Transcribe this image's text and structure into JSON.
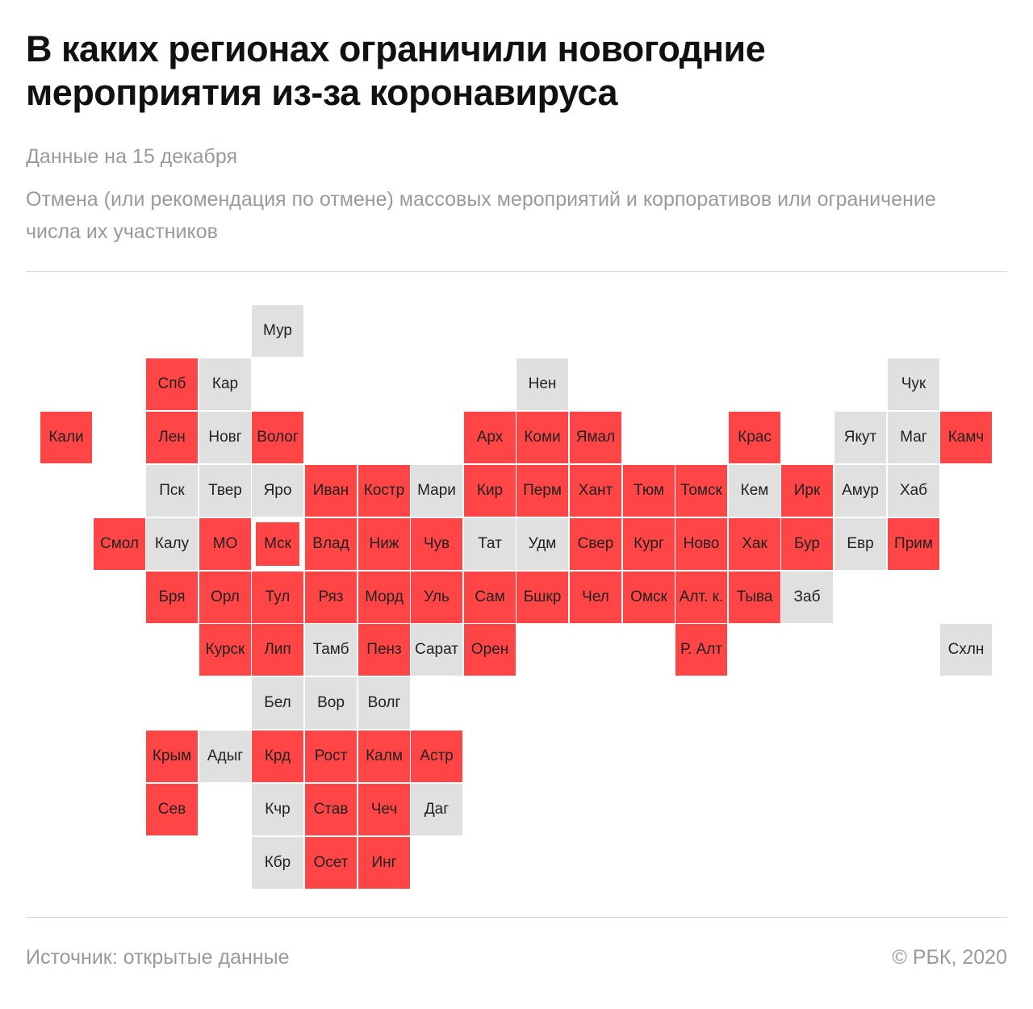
{
  "header": {
    "title": "В каких регионах ограничили новогодние мероприятия из-за коронавируса",
    "date": "Данные на 15 декабря",
    "subtitle": "Отмена (или рекомендация по отмене) массовых мероприятий и корпоративов или ограничение числа их участников"
  },
  "footer": {
    "source": "Источник:  открытые данные",
    "copyright": "© РБК, 2020"
  },
  "colors": {
    "restricted": "#ff4545",
    "none": "#e0e0e0"
  },
  "regions": [
    {
      "label": "Мур",
      "row": 0,
      "col": 4,
      "status": "none"
    },
    {
      "label": "Спб",
      "row": 1,
      "col": 2,
      "status": "restricted"
    },
    {
      "label": "Кар",
      "row": 1,
      "col": 3,
      "status": "none"
    },
    {
      "label": "Нен",
      "row": 1,
      "col": 9,
      "status": "none"
    },
    {
      "label": "Чук",
      "row": 1,
      "col": 16,
      "status": "none"
    },
    {
      "label": "Кали",
      "row": 2,
      "col": 0,
      "status": "restricted"
    },
    {
      "label": "Лен",
      "row": 2,
      "col": 2,
      "status": "restricted"
    },
    {
      "label": "Новг",
      "row": 2,
      "col": 3,
      "status": "none"
    },
    {
      "label": "Волог",
      "row": 2,
      "col": 4,
      "status": "restricted"
    },
    {
      "label": "Арх",
      "row": 2,
      "col": 8,
      "status": "restricted"
    },
    {
      "label": "Коми",
      "row": 2,
      "col": 9,
      "status": "restricted"
    },
    {
      "label": "Ямал",
      "row": 2,
      "col": 10,
      "status": "restricted"
    },
    {
      "label": "Крас",
      "row": 2,
      "col": 13,
      "status": "restricted"
    },
    {
      "label": "Якут",
      "row": 2,
      "col": 15,
      "status": "none"
    },
    {
      "label": "Маг",
      "row": 2,
      "col": 16,
      "status": "none"
    },
    {
      "label": "Камч",
      "row": 2,
      "col": 17,
      "status": "restricted"
    },
    {
      "label": "Пск",
      "row": 3,
      "col": 2,
      "status": "none"
    },
    {
      "label": "Твер",
      "row": 3,
      "col": 3,
      "status": "none"
    },
    {
      "label": "Яро",
      "row": 3,
      "col": 4,
      "status": "none"
    },
    {
      "label": "Иван",
      "row": 3,
      "col": 5,
      "status": "restricted"
    },
    {
      "label": "Костр",
      "row": 3,
      "col": 6,
      "status": "restricted"
    },
    {
      "label": "Мари",
      "row": 3,
      "col": 7,
      "status": "none"
    },
    {
      "label": "Кир",
      "row": 3,
      "col": 8,
      "status": "restricted"
    },
    {
      "label": "Перм",
      "row": 3,
      "col": 9,
      "status": "restricted"
    },
    {
      "label": "Хант",
      "row": 3,
      "col": 10,
      "status": "restricted"
    },
    {
      "label": "Тюм",
      "row": 3,
      "col": 11,
      "status": "restricted"
    },
    {
      "label": "Томск",
      "row": 3,
      "col": 12,
      "status": "restricted"
    },
    {
      "label": "Кем",
      "row": 3,
      "col": 13,
      "status": "none"
    },
    {
      "label": "Ирк",
      "row": 3,
      "col": 14,
      "status": "restricted"
    },
    {
      "label": "Амур",
      "row": 3,
      "col": 15,
      "status": "none"
    },
    {
      "label": "Хаб",
      "row": 3,
      "col": 16,
      "status": "none"
    },
    {
      "label": "Смол",
      "row": 4,
      "col": 1,
      "status": "restricted"
    },
    {
      "label": "Калу",
      "row": 4,
      "col": 2,
      "status": "none"
    },
    {
      "label": "МО",
      "row": 4,
      "col": 3,
      "status": "restricted"
    },
    {
      "label": "Мск",
      "row": 4,
      "col": 4,
      "status": "capital"
    },
    {
      "label": "Влад",
      "row": 4,
      "col": 5,
      "status": "restricted"
    },
    {
      "label": "Ниж",
      "row": 4,
      "col": 6,
      "status": "restricted"
    },
    {
      "label": "Чув",
      "row": 4,
      "col": 7,
      "status": "restricted"
    },
    {
      "label": "Тат",
      "row": 4,
      "col": 8,
      "status": "none"
    },
    {
      "label": "Удм",
      "row": 4,
      "col": 9,
      "status": "none"
    },
    {
      "label": "Свер",
      "row": 4,
      "col": 10,
      "status": "restricted"
    },
    {
      "label": "Кург",
      "row": 4,
      "col": 11,
      "status": "restricted"
    },
    {
      "label": "Ново",
      "row": 4,
      "col": 12,
      "status": "restricted"
    },
    {
      "label": "Хак",
      "row": 4,
      "col": 13,
      "status": "restricted"
    },
    {
      "label": "Бур",
      "row": 4,
      "col": 14,
      "status": "restricted"
    },
    {
      "label": "Евр",
      "row": 4,
      "col": 15,
      "status": "none"
    },
    {
      "label": "Прим",
      "row": 4,
      "col": 16,
      "status": "restricted"
    },
    {
      "label": "Бря",
      "row": 5,
      "col": 2,
      "status": "restricted"
    },
    {
      "label": "Орл",
      "row": 5,
      "col": 3,
      "status": "restricted"
    },
    {
      "label": "Тул",
      "row": 5,
      "col": 4,
      "status": "restricted"
    },
    {
      "label": "Ряз",
      "row": 5,
      "col": 5,
      "status": "restricted"
    },
    {
      "label": "Морд",
      "row": 5,
      "col": 6,
      "status": "restricted"
    },
    {
      "label": "Уль",
      "row": 5,
      "col": 7,
      "status": "restricted"
    },
    {
      "label": "Сам",
      "row": 5,
      "col": 8,
      "status": "restricted"
    },
    {
      "label": "Бшкр",
      "row": 5,
      "col": 9,
      "status": "restricted"
    },
    {
      "label": "Чел",
      "row": 5,
      "col": 10,
      "status": "restricted"
    },
    {
      "label": "Омск",
      "row": 5,
      "col": 11,
      "status": "restricted"
    },
    {
      "label": "Алт. к.",
      "row": 5,
      "col": 12,
      "status": "restricted"
    },
    {
      "label": "Тыва",
      "row": 5,
      "col": 13,
      "status": "restricted"
    },
    {
      "label": "Заб",
      "row": 5,
      "col": 14,
      "status": "none"
    },
    {
      "label": "Курск",
      "row": 6,
      "col": 3,
      "status": "restricted"
    },
    {
      "label": "Лип",
      "row": 6,
      "col": 4,
      "status": "restricted"
    },
    {
      "label": "Тамб",
      "row": 6,
      "col": 5,
      "status": "none"
    },
    {
      "label": "Пенз",
      "row": 6,
      "col": 6,
      "status": "restricted"
    },
    {
      "label": "Сарат",
      "row": 6,
      "col": 7,
      "status": "none"
    },
    {
      "label": "Орен",
      "row": 6,
      "col": 8,
      "status": "restricted"
    },
    {
      "label": "Р. Алт",
      "row": 6,
      "col": 12,
      "status": "restricted"
    },
    {
      "label": "Схлн",
      "row": 6,
      "col": 17,
      "status": "none"
    },
    {
      "label": "Бел",
      "row": 7,
      "col": 4,
      "status": "none"
    },
    {
      "label": "Вор",
      "row": 7,
      "col": 5,
      "status": "none"
    },
    {
      "label": "Волг",
      "row": 7,
      "col": 6,
      "status": "none"
    },
    {
      "label": "Крым",
      "row": 8,
      "col": 2,
      "status": "restricted"
    },
    {
      "label": "Адыг",
      "row": 8,
      "col": 3,
      "status": "none"
    },
    {
      "label": "Крд",
      "row": 8,
      "col": 4,
      "status": "restricted"
    },
    {
      "label": "Рост",
      "row": 8,
      "col": 5,
      "status": "restricted"
    },
    {
      "label": "Калм",
      "row": 8,
      "col": 6,
      "status": "restricted"
    },
    {
      "label": "Астр",
      "row": 8,
      "col": 7,
      "status": "restricted"
    },
    {
      "label": "Сев",
      "row": 9,
      "col": 2,
      "status": "restricted"
    },
    {
      "label": "Кчр",
      "row": 9,
      "col": 4,
      "status": "none"
    },
    {
      "label": "Став",
      "row": 9,
      "col": 5,
      "status": "restricted"
    },
    {
      "label": "Чеч",
      "row": 9,
      "col": 6,
      "status": "restricted"
    },
    {
      "label": "Даг",
      "row": 9,
      "col": 7,
      "status": "none"
    },
    {
      "label": "Кбр",
      "row": 10,
      "col": 4,
      "status": "none"
    },
    {
      "label": "Осет",
      "row": 10,
      "col": 5,
      "status": "restricted"
    },
    {
      "label": "Инг",
      "row": 10,
      "col": 6,
      "status": "restricted"
    }
  ]
}
